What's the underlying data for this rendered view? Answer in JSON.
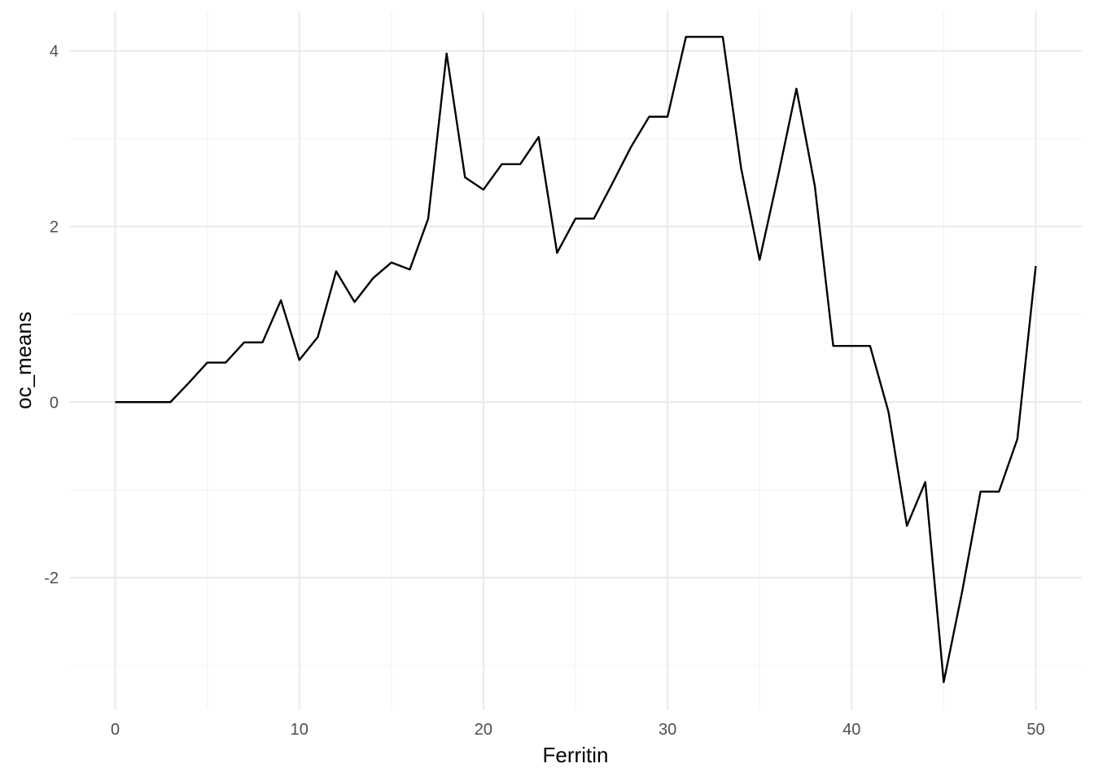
{
  "chart_data": {
    "type": "line",
    "xlabel": "Ferritin",
    "ylabel": "oc_means",
    "xlim": [
      -2.5,
      52.5
    ],
    "ylim": [
      -3.5,
      4.45
    ],
    "x_ticks": [
      0,
      10,
      20,
      30,
      40,
      50
    ],
    "x_tick_labels": [
      "0",
      "10",
      "20",
      "30",
      "40",
      "50"
    ],
    "x_minor_ticks": [
      5,
      15,
      25,
      35,
      45
    ],
    "y_ticks": [
      -2,
      0,
      2,
      4
    ],
    "y_tick_labels": [
      "-2",
      "0",
      "2",
      "4"
    ],
    "y_minor_ticks": [
      -3,
      -1,
      1,
      3
    ],
    "grid": true,
    "legend": "none",
    "line_color": "#000000",
    "series": [
      {
        "x": [
          0,
          1,
          2,
          3,
          4,
          5,
          6,
          7,
          8,
          9,
          10,
          11,
          12,
          13,
          14,
          15,
          16,
          17,
          18,
          19,
          20,
          21,
          22,
          23,
          24,
          25,
          26,
          27,
          28,
          29,
          30,
          31,
          32,
          33,
          34,
          35,
          36,
          37,
          38,
          39,
          40,
          41,
          42,
          43,
          44,
          45,
          46,
          47,
          48,
          49,
          50
        ],
        "values": [
          0,
          0,
          0,
          0,
          0.22,
          0.45,
          0.45,
          0.68,
          0.68,
          1.16,
          0.48,
          0.74,
          1.49,
          1.14,
          1.41,
          1.59,
          1.51,
          2.09,
          3.97,
          2.56,
          2.42,
          2.71,
          2.71,
          3.02,
          1.7,
          2.09,
          2.09,
          2.49,
          2.9,
          3.25,
          3.25,
          4.16,
          4.16,
          4.16,
          2.66,
          1.62,
          2.57,
          3.57,
          2.46,
          0.64,
          0.64,
          0.64,
          -0.11,
          -1.41,
          -0.91,
          -3.19,
          -2.16,
          -1.02,
          -1.02,
          -0.42,
          1.55
        ]
      }
    ]
  }
}
